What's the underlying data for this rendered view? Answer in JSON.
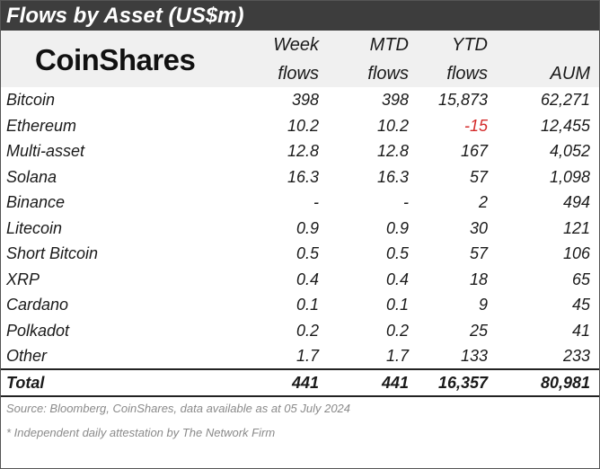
{
  "title": "Flows by Asset (US$m)",
  "logo_text": "CoinShares",
  "columns": {
    "week": [
      "Week",
      "flows"
    ],
    "mtd": [
      "MTD",
      "flows"
    ],
    "ytd": [
      "YTD",
      "flows"
    ],
    "aum": "AUM"
  },
  "rows": [
    {
      "name": "Bitcoin",
      "week": "398",
      "mtd": "398",
      "ytd": "15,873",
      "aum": "62,271"
    },
    {
      "name": "Ethereum",
      "week": "10.2",
      "mtd": "10.2",
      "ytd": "-15",
      "aum": "12,455"
    },
    {
      "name": "Multi-asset",
      "week": "12.8",
      "mtd": "12.8",
      "ytd": "167",
      "aum": "4,052"
    },
    {
      "name": "Solana",
      "week": "16.3",
      "mtd": "16.3",
      "ytd": "57",
      "aum": "1,098"
    },
    {
      "name": "Binance",
      "week": "-",
      "mtd": "-",
      "ytd": "2",
      "aum": "494"
    },
    {
      "name": "Litecoin",
      "week": "0.9",
      "mtd": "0.9",
      "ytd": "30",
      "aum": "121"
    },
    {
      "name": "Short Bitcoin",
      "week": "0.5",
      "mtd": "0.5",
      "ytd": "57",
      "aum": "106"
    },
    {
      "name": "XRP",
      "week": "0.4",
      "mtd": "0.4",
      "ytd": "18",
      "aum": "65"
    },
    {
      "name": "Cardano",
      "week": "0.1",
      "mtd": "0.1",
      "ytd": "9",
      "aum": "45"
    },
    {
      "name": "Polkadot",
      "week": "0.2",
      "mtd": "0.2",
      "ytd": "25",
      "aum": "41"
    },
    {
      "name": "Other",
      "week": "1.7",
      "mtd": "1.7",
      "ytd": "133",
      "aum": "233"
    }
  ],
  "total": {
    "name": "Total",
    "week": "441",
    "mtd": "441",
    "ytd": "16,357",
    "aum": "80,981"
  },
  "source_note": "Source: Bloomberg, CoinShares, data available as at 05 July 2024",
  "footnote": "* Independent daily attestation by The Network Firm",
  "colors": {
    "title_bar": "#3d3d3d",
    "header_bg": "#f0f0f0",
    "negative": "#d42a2a"
  }
}
